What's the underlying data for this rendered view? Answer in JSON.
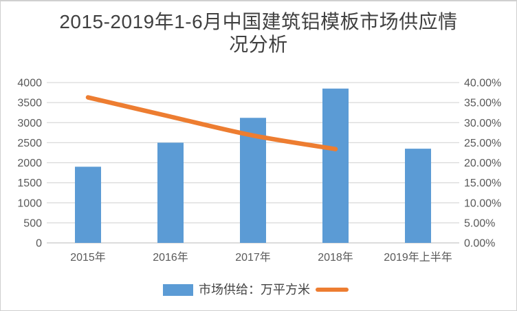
{
  "title": {
    "line1": "2015-2019年1-6月中国建筑铝模板市场供应情",
    "line2": "况分析"
  },
  "legend": {
    "bar_label": "市场供给：万平方米",
    "line_label": ""
  },
  "colors": {
    "bar": "#5B9BD5",
    "line": "#ED7D31",
    "grid": "#D9D9D9",
    "axis_line": "#C6C6C6",
    "tick_text": "#595959",
    "title_text": "#404040",
    "legend_text": "#444444",
    "border": "#CFCFCF"
  },
  "chart_data": {
    "type": "bar",
    "subtype": "combo-bar-with-smoothed-line",
    "title": "2015-2019年1-6月中国建筑铝模板市场供应情况分析",
    "categories": [
      "2015年",
      "2016年",
      "2017年",
      "2018年",
      "2019年上半年"
    ],
    "series": [
      {
        "name": "市场供给：万平方米",
        "type": "bar",
        "axis": "left",
        "values": [
          1900,
          2500,
          3120,
          3850,
          2350
        ]
      },
      {
        "name": "",
        "type": "line",
        "axis": "right",
        "values": [
          36.3,
          31.5,
          26.8,
          23.4,
          null
        ]
      }
    ],
    "left_axis": {
      "min": 0,
      "max": 4000,
      "step": 500
    },
    "right_axis": {
      "min": 0,
      "max": 40,
      "step": 5,
      "decimals": 2,
      "suffix": "%"
    },
    "grid": true,
    "legend_position": "bottom",
    "xlabel": "",
    "ylabel_left": "",
    "ylabel_right": ""
  }
}
